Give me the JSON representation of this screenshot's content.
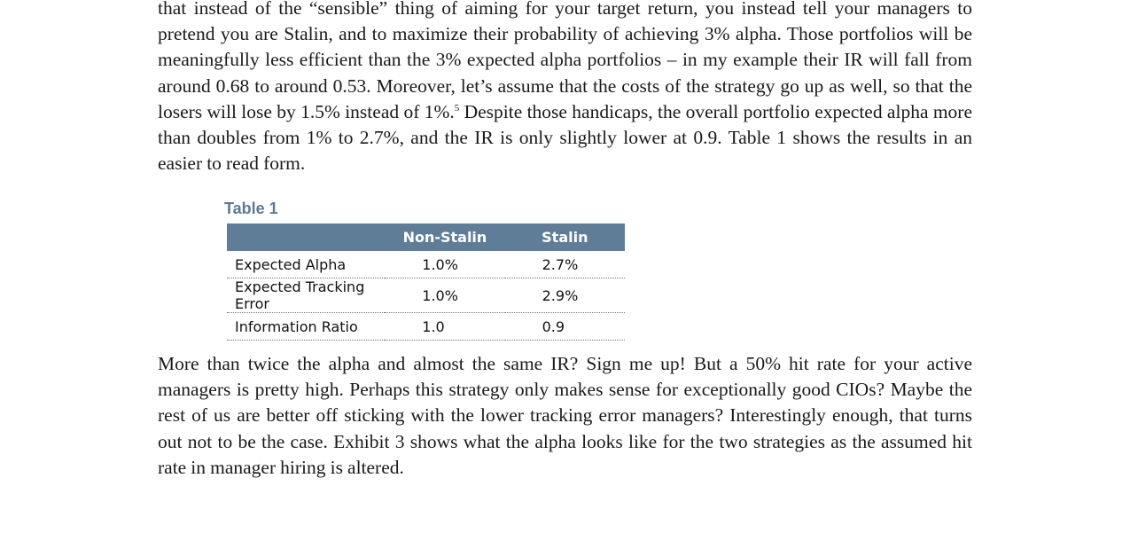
{
  "paragraph_top": {
    "text_before_footnote": "that instead of the “sensible” thing of aiming for your target return, you instead tell your managers to pretend you are Stalin, and to maximize their probability of achieving 3% alpha. Those portfolios will be meaningfully less efficient than the 3% expected alpha portfolios – in my example their IR will fall from around 0.68 to around 0.53. Moreover, let’s assume that the costs of the strategy go up as well, so that the losers will lose by 1.5% instead of 1%.",
    "footnote_marker": "5",
    "text_after_footnote": " Despite those handicaps, the overall portfolio expected alpha more than doubles from 1% to 2.7%, and the IR is only slightly lower at 0.9. Table 1 shows the results in an easier to read form."
  },
  "table": {
    "title": "Table 1",
    "headers": [
      "",
      "Non-Stalin",
      "Stalin"
    ],
    "rows": [
      [
        "Expected Alpha",
        "1.0%",
        "2.7%"
      ],
      [
        "Expected Tracking Error",
        "1.0%",
        "2.9%"
      ],
      [
        "Information Ratio",
        "1.0",
        "0.9"
      ]
    ],
    "header_color": "#5f7d97",
    "title_color": "#5b7b95"
  },
  "paragraph_bottom": {
    "text": "More than twice the alpha and almost the same IR? Sign me up! But a 50% hit rate for your active managers is pretty high. Perhaps this strategy only makes sense for exceptionally good CIOs? Maybe the rest of us are better off sticking with the lower tracking error managers? Interestingly enough, that turns out not to be the case. Exhibit 3 shows what the alpha looks like for the two strategies as the assumed hit rate in manager hiring is altered."
  }
}
